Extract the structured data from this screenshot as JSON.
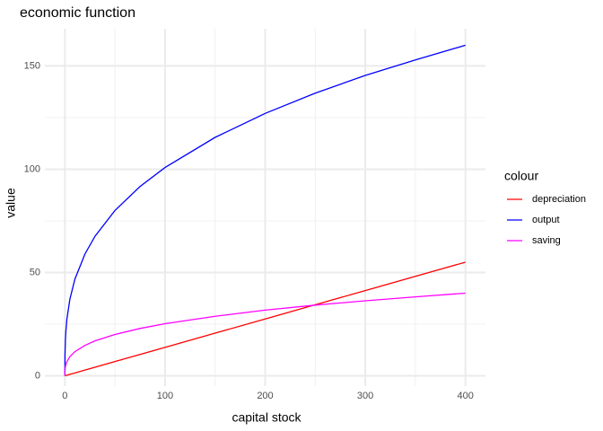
{
  "chart_data": {
    "type": "line",
    "title": "economic function",
    "x_label": "capital stock",
    "y_label": "value",
    "legend_title": "colour",
    "x": [
      0,
      0.1,
      0.5,
      1,
      2,
      5,
      10,
      20,
      30,
      50,
      75,
      100,
      150,
      200,
      250,
      300,
      350,
      400
    ],
    "series": [
      {
        "name": "depreciation",
        "color": "#ff0000",
        "values": [
          0,
          0.01375,
          0.06875,
          0.1375,
          0.275,
          0.6875,
          1.375,
          2.75,
          4.125,
          6.875,
          10.3125,
          13.75,
          20.625,
          27.5,
          34.375,
          41.25,
          48.125,
          55
        ]
      },
      {
        "name": "output",
        "color": "#0000ff",
        "values": [
          0,
          10.08,
          17.2,
          21.7,
          27.4,
          37.1,
          46.8,
          58.9,
          67.5,
          80.0,
          91.6,
          100.8,
          115.4,
          127.0,
          136.8,
          145.4,
          152.9,
          160
        ]
      },
      {
        "name": "saving",
        "color": "#ff00ff",
        "values": [
          0,
          2.5,
          4.3,
          5.4,
          6.8,
          9.3,
          11.7,
          14.7,
          16.9,
          20.0,
          22.9,
          25.2,
          28.8,
          31.8,
          34.2,
          36.3,
          38.2,
          40
        ]
      }
    ],
    "xlim": [
      -20,
      420
    ],
    "ylim": [
      -5,
      168
    ],
    "xticks": [
      0,
      100,
      200,
      300,
      400
    ],
    "yticks": [
      0,
      50,
      100,
      150
    ],
    "grid": true,
    "legend": "right"
  }
}
